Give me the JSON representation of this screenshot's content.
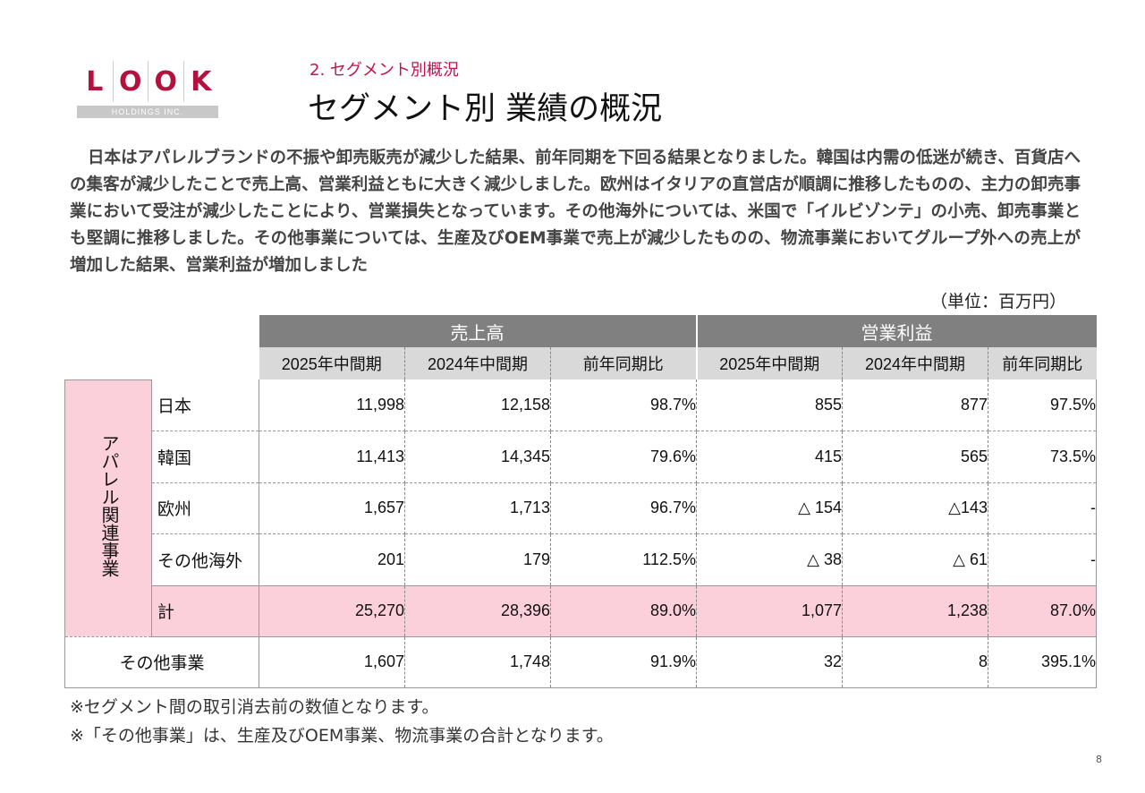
{
  "logo": {
    "letters": [
      "L",
      "O",
      "O",
      "K"
    ],
    "sub": "HOLDINGS INC."
  },
  "header": {
    "section": "2. セグメント別概況",
    "title": "セグメント別 業績の概況"
  },
  "summary": "日本はアパレルブランドの不振や卸売販売が減少した結果、前年同期を下回る結果となりました。韓国は内需の低迷が続き、百貨店への集客が減少したことで売上高、営業利益ともに大きく減少しました。欧州はイタリアの直営店が順調に推移したものの、主力の卸売事業において受注が減少したことにより、営業損失となっています。その他海外については、米国で「イルビゾンテ」の小売、卸売事業とも堅調に推移しました。その他事業については、生産及びOEM事業で売上が減少したものの、物流事業においてグループ外への売上が増加した結果、営業利益が増加しました",
  "unit": "（単位：百万円）",
  "table": {
    "groups": [
      "売上高",
      "営業利益"
    ],
    "columns": [
      "2025年中間期",
      "2024年中間期",
      "前年同期比",
      "2025年中間期",
      "2024年中間期",
      "前年同期比"
    ],
    "apparel_label": "アパレル関連事業",
    "rows": [
      {
        "label": "日本",
        "values": [
          "11,998",
          "12,158",
          "98.7%",
          "855",
          "877",
          "97.5%"
        ]
      },
      {
        "label": "韓国",
        "values": [
          "11,413",
          "14,345",
          "79.6%",
          "415",
          "565",
          "73.5%"
        ]
      },
      {
        "label": "欧州",
        "values": [
          "1,657",
          "1,713",
          "96.7%",
          "△ 154",
          "△143",
          "-"
        ]
      },
      {
        "label": "その他海外",
        "values": [
          "201",
          "179",
          "112.5%",
          "△ 38",
          "△ 61",
          "-"
        ]
      }
    ],
    "total": {
      "label": "計",
      "values": [
        "25,270",
        "28,396",
        "89.0%",
        "1,077",
        "1,238",
        "87.0%"
      ]
    },
    "other": {
      "label": "その他事業",
      "values": [
        "1,607",
        "1,748",
        "91.9%",
        "32",
        "8",
        "395.1%"
      ]
    }
  },
  "notes": [
    "※セグメント間の取引消去前の数値となります。",
    "※「その他事業」は、生産及びOEM事業、物流事業の合計となります。"
  ],
  "page_number": "8",
  "colors": {
    "accent": "#c0144a",
    "header_dark": "#808080",
    "header_light": "#d9d9d9",
    "pink": "#fbd0db"
  }
}
